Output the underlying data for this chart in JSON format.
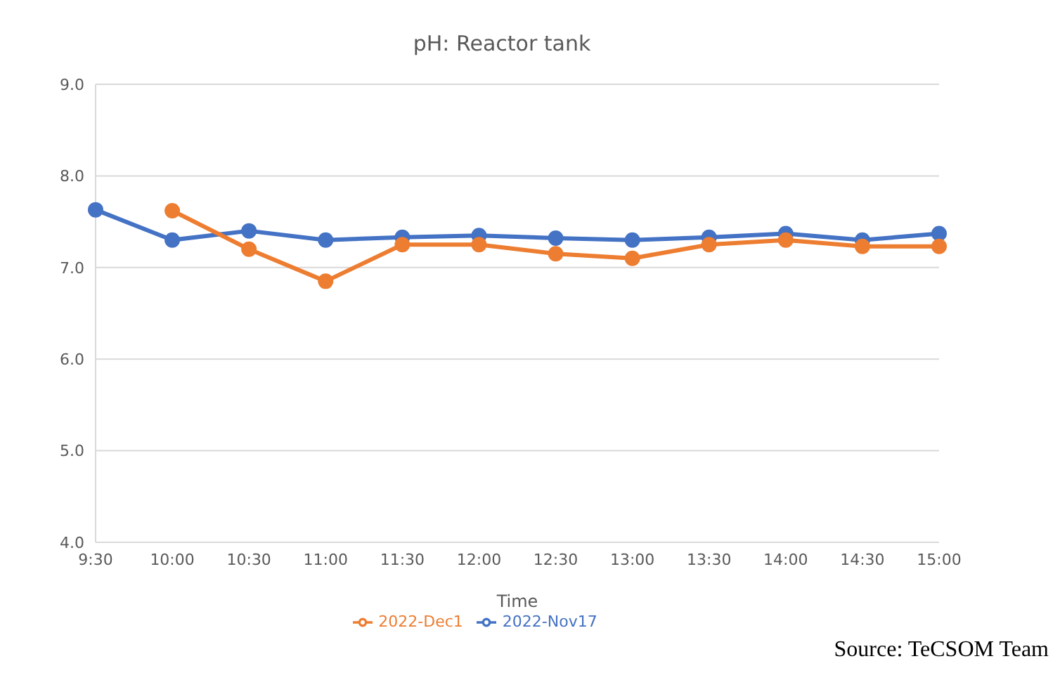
{
  "chart_data": {
    "type": "line",
    "title": "pH: Reactor tank",
    "xlabel": "Time",
    "categories": [
      "9:30",
      "10:00",
      "10:30",
      "11:00",
      "11:30",
      "12:00",
      "12:30",
      "13:00",
      "13:30",
      "14:00",
      "14:30",
      "15:00"
    ],
    "series": [
      {
        "name": "2022-Nov17",
        "color": "#4472c4",
        "values": [
          7.63,
          7.3,
          7.4,
          7.3,
          7.33,
          7.35,
          7.32,
          7.3,
          7.33,
          7.37,
          7.3,
          7.37
        ]
      },
      {
        "name": "2022-Dec1",
        "color": "#ed7d31",
        "values": [
          null,
          7.62,
          7.2,
          6.85,
          7.25,
          7.25,
          7.15,
          7.1,
          7.25,
          7.3,
          7.23,
          7.23
        ]
      }
    ],
    "ylim": [
      4,
      9
    ],
    "yticks": [
      {
        "value": 4,
        "label": "4.0"
      },
      {
        "value": 5,
        "label": "5.0"
      },
      {
        "value": 6,
        "label": "6.0"
      },
      {
        "value": 7,
        "label": "7.0"
      },
      {
        "value": 8,
        "label": "8.0"
      },
      {
        "value": 9,
        "label": "9.0"
      }
    ],
    "grid": "y",
    "legend": "bottom",
    "marker": "circle",
    "line_style": "solid",
    "annotations": [
      "Source: TeCSOM Team"
    ]
  }
}
